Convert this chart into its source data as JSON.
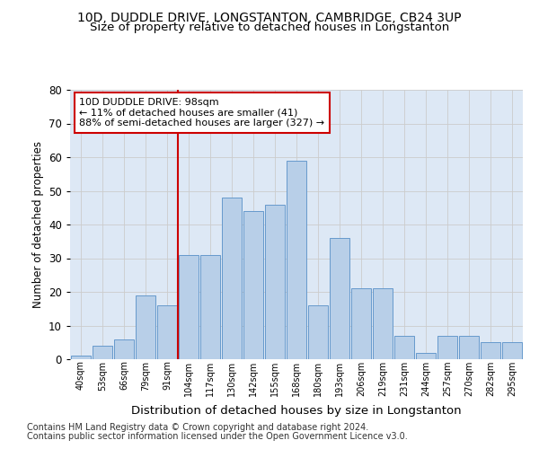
{
  "title_line1": "10D, DUDDLE DRIVE, LONGSTANTON, CAMBRIDGE, CB24 3UP",
  "title_line2": "Size of property relative to detached houses in Longstanton",
  "xlabel": "Distribution of detached houses by size in Longstanton",
  "ylabel": "Number of detached properties",
  "bar_labels": [
    "40sqm",
    "53sqm",
    "66sqm",
    "79sqm",
    "91sqm",
    "104sqm",
    "117sqm",
    "130sqm",
    "142sqm",
    "155sqm",
    "168sqm",
    "180sqm",
    "193sqm",
    "206sqm",
    "219sqm",
    "231sqm",
    "244sqm",
    "257sqm",
    "270sqm",
    "282sqm",
    "295sqm"
  ],
  "bar_heights": [
    1,
    4,
    6,
    19,
    16,
    31,
    31,
    48,
    44,
    46,
    59,
    16,
    36,
    21,
    21,
    7,
    2,
    7,
    7,
    5,
    5
  ],
  "bar_color": "#b8cfe8",
  "bar_edge_color": "#6699cc",
  "vline_color": "#cc0000",
  "vline_pos": 4.5,
  "annotation_text": "10D DUDDLE DRIVE: 98sqm\n← 11% of detached houses are smaller (41)\n88% of semi-detached houses are larger (327) →",
  "annotation_box_color": "#cc0000",
  "ylim": [
    0,
    80
  ],
  "yticks": [
    0,
    10,
    20,
    30,
    40,
    50,
    60,
    70,
    80
  ],
  "grid_color": "#cccccc",
  "bg_color": "#dde8f5",
  "footer_line1": "Contains HM Land Registry data © Crown copyright and database right 2024.",
  "footer_line2": "Contains public sector information licensed under the Open Government Licence v3.0.",
  "title_fontsize": 10,
  "subtitle_fontsize": 9.5,
  "bar_label_fontsize": 7,
  "annotation_fontsize": 8,
  "xlabel_fontsize": 9.5,
  "ylabel_fontsize": 8.5,
  "footer_fontsize": 7
}
